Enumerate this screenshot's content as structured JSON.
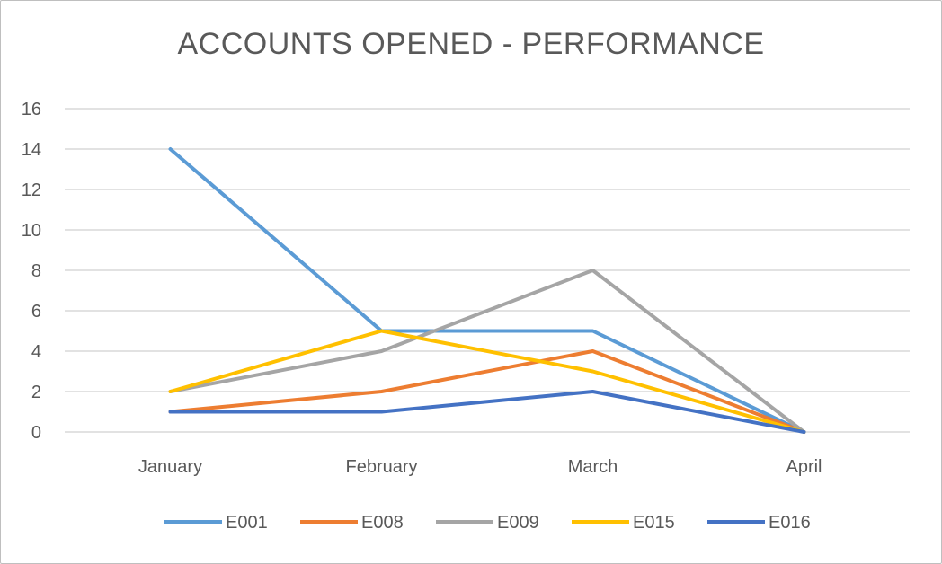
{
  "chart_data": {
    "type": "line",
    "title": "ACCOUNTS OPENED - PERFORMANCE",
    "xlabel": "",
    "ylabel": "",
    "categories": [
      "January",
      "February",
      "March",
      "April"
    ],
    "ylim": [
      0,
      16
    ],
    "yticks": [
      0,
      2,
      4,
      6,
      8,
      10,
      12,
      14,
      16
    ],
    "grid": true,
    "legend": "bottom",
    "series": [
      {
        "name": "E001",
        "color": "#5b9bd5",
        "values": [
          14,
          5,
          5,
          0
        ]
      },
      {
        "name": "E008",
        "color": "#ed7d31",
        "values": [
          1,
          2,
          4,
          0
        ]
      },
      {
        "name": "E009",
        "color": "#a5a5a5",
        "values": [
          2,
          4,
          8,
          0
        ]
      },
      {
        "name": "E015",
        "color": "#ffc000",
        "values": [
          2,
          5,
          3,
          0
        ]
      },
      {
        "name": "E016",
        "color": "#4472c4",
        "values": [
          1,
          1,
          2,
          0
        ]
      }
    ]
  }
}
